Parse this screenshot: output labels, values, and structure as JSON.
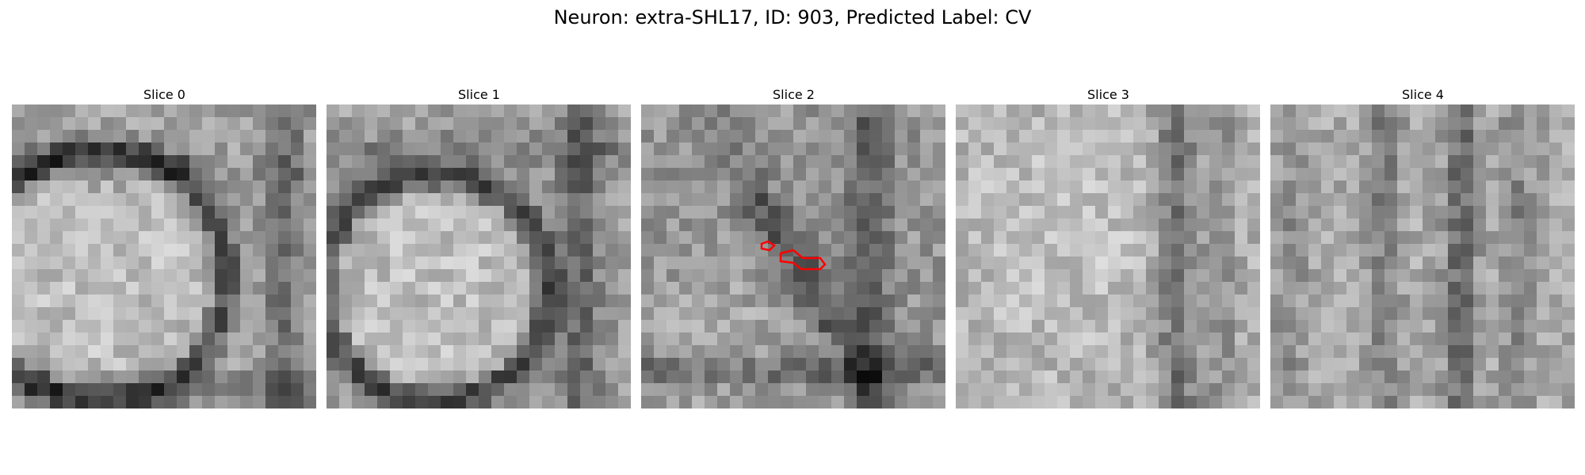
{
  "figure": {
    "title": "Neuron: extra-SHL17, ID: 903, Predicted Label: CV"
  },
  "panels": [
    {
      "title": "Slice 0",
      "icon": "grayscale-patch",
      "overlay": false
    },
    {
      "title": "Slice 1",
      "icon": "grayscale-patch",
      "overlay": false
    },
    {
      "title": "Slice 2",
      "icon": "grayscale-patch",
      "overlay": true,
      "overlay_color": "#ff0000"
    },
    {
      "title": "Slice 3",
      "icon": "grayscale-patch",
      "overlay": false
    },
    {
      "title": "Slice 4",
      "icon": "grayscale-patch",
      "overlay": false
    }
  ]
}
